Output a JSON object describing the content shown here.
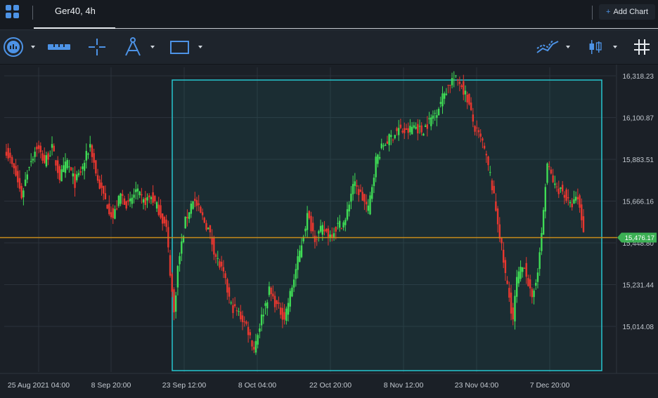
{
  "header": {
    "tab_title": "Ger40, 4h",
    "add_chart_label": "Add Chart"
  },
  "toolbar": {
    "icons": [
      "chart-settings-icon",
      "ruler-icon",
      "crosshair-icon",
      "compass-drawing-icon",
      "rectangle-icon",
      "indicators-icon",
      "candlestick-type-icon",
      "grid-icon"
    ]
  },
  "colors": {
    "up": "#3fdc55",
    "down": "#e8372f",
    "selection": "#26c6cf",
    "price_line": "#c88b1a",
    "price_badge": "#3cb054",
    "accent": "#4d93e6"
  },
  "chart_data": {
    "type": "candlestick",
    "symbol": "Ger40",
    "timeframe": "4h",
    "y_ticks": [
      15014.08,
      15231.44,
      15448.8,
      15666.16,
      15883.51,
      16100.87,
      16318.23
    ],
    "y_tick_labels": [
      "15,014.08",
      "15,231.44",
      "15,448.80",
      "15,666.16",
      "15,883.51",
      "16,100.87",
      "16,318.23"
    ],
    "x_tick_labels": [
      "25 Aug 2021 04:00",
      "8 Sep 20:00",
      "23 Sep 12:00",
      "8 Oct 04:00",
      "22 Oct 20:00",
      "8 Nov 12:00",
      "23 Nov 04:00",
      "7 Dec 20:00"
    ],
    "current_price": 15476.17,
    "current_price_label": "15,476.17",
    "anchors": [
      [
        0,
        15930
      ],
      [
        5,
        15800
      ],
      [
        8,
        15690
      ],
      [
        12,
        15860
      ],
      [
        16,
        15950
      ],
      [
        20,
        15870
      ],
      [
        24,
        15940
      ],
      [
        28,
        15790
      ],
      [
        32,
        15870
      ],
      [
        36,
        15760
      ],
      [
        40,
        15840
      ],
      [
        44,
        15960
      ],
      [
        48,
        15770
      ],
      [
        52,
        15670
      ],
      [
        56,
        15580
      ],
      [
        60,
        15700
      ],
      [
        64,
        15640
      ],
      [
        68,
        15720
      ],
      [
        72,
        15660
      ],
      [
        76,
        15690
      ],
      [
        80,
        15620
      ],
      [
        84,
        15520
      ],
      [
        88,
        15080
      ],
      [
        90,
        15320
      ],
      [
        94,
        15560
      ],
      [
        98,
        15680
      ],
      [
        102,
        15600
      ],
      [
        106,
        15520
      ],
      [
        110,
        15380
      ],
      [
        114,
        15280
      ],
      [
        118,
        15120
      ],
      [
        122,
        15080
      ],
      [
        126,
        15020
      ],
      [
        130,
        14900
      ],
      [
        134,
        15060
      ],
      [
        138,
        15200
      ],
      [
        142,
        15120
      ],
      [
        146,
        15060
      ],
      [
        150,
        15220
      ],
      [
        154,
        15400
      ],
      [
        158,
        15590
      ],
      [
        162,
        15480
      ],
      [
        166,
        15520
      ],
      [
        170,
        15490
      ],
      [
        174,
        15540
      ],
      [
        178,
        15560
      ],
      [
        182,
        15760
      ],
      [
        186,
        15700
      ],
      [
        190,
        15620
      ],
      [
        194,
        15880
      ],
      [
        198,
        15960
      ],
      [
        202,
        16000
      ],
      [
        206,
        16040
      ],
      [
        210,
        16020
      ],
      [
        214,
        16060
      ],
      [
        218,
        16030
      ],
      [
        222,
        16080
      ],
      [
        226,
        16140
      ],
      [
        230,
        16230
      ],
      [
        234,
        16300
      ],
      [
        238,
        16290
      ],
      [
        242,
        16200
      ],
      [
        246,
        16040
      ],
      [
        250,
        15970
      ],
      [
        254,
        15800
      ],
      [
        258,
        15560
      ],
      [
        262,
        15280
      ],
      [
        266,
        15050
      ],
      [
        268,
        15260
      ],
      [
        272,
        15340
      ],
      [
        276,
        15140
      ],
      [
        280,
        15380
      ],
      [
        284,
        15860
      ],
      [
        288,
        15740
      ],
      [
        292,
        15720
      ],
      [
        296,
        15640
      ],
      [
        300,
        15680
      ],
      [
        303,
        15520
      ]
    ]
  }
}
